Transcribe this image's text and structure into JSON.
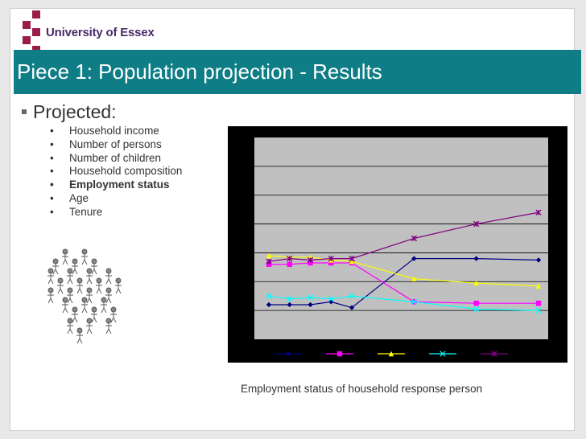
{
  "header": {
    "logo_text": "University of Essex",
    "title": "Piece 1: Population projection - Results"
  },
  "bullets": {
    "main": "Projected:",
    "items": [
      {
        "label": "Household income",
        "bold": false
      },
      {
        "label": "Number of persons",
        "bold": false
      },
      {
        "label": "Number of children",
        "bold": false
      },
      {
        "label": "Household composition",
        "bold": false
      },
      {
        "label": "Employment status",
        "bold": true
      },
      {
        "label": "Age",
        "bold": false
      },
      {
        "label": "Tenure",
        "bold": false
      }
    ]
  },
  "caption": "Employment status of household response person",
  "colors": {
    "title_bar": "#0e7d85",
    "logo_square": "#9b1c4a",
    "plot_bg": "#c0c0c0",
    "chart_bg": "#000000"
  },
  "chart_data": {
    "type": "line",
    "title": "",
    "xlabel": "",
    "ylabel": "",
    "x": [
      0,
      1,
      2,
      3,
      4,
      7,
      10,
      13
    ],
    "ylim": [
      0,
      7
    ],
    "grid": true,
    "legend": "bottom",
    "series": [
      {
        "color": "#000080",
        "marker": "diamond",
        "values": [
          1.2,
          1.2,
          1.2,
          1.3,
          1.1,
          2.8,
          2.8,
          2.75
        ]
      },
      {
        "color": "#ff00ff",
        "marker": "square",
        "values": [
          2.6,
          2.6,
          2.65,
          2.65,
          2.65,
          1.3,
          1.25,
          1.25
        ]
      },
      {
        "color": "#ffff00",
        "marker": "triangle",
        "values": [
          2.9,
          2.85,
          2.85,
          2.75,
          2.7,
          2.1,
          1.95,
          1.85
        ]
      },
      {
        "color": "#00ffff",
        "marker": "x",
        "values": [
          1.5,
          1.4,
          1.45,
          1.4,
          1.5,
          1.3,
          1.05,
          1.0
        ]
      },
      {
        "color": "#800080",
        "marker": "star",
        "values": [
          2.7,
          2.8,
          2.75,
          2.8,
          2.8,
          3.5,
          4.0,
          4.4
        ]
      }
    ]
  }
}
